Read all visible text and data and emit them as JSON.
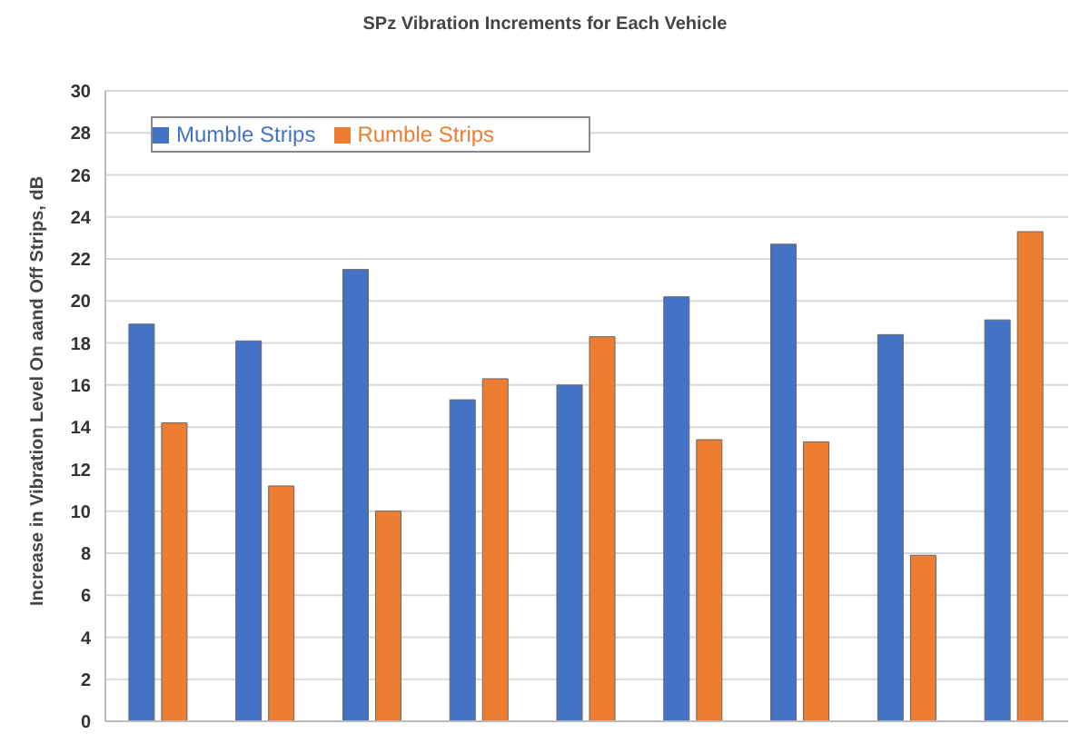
{
  "chart_data": {
    "type": "bar",
    "title": "SPz Vibration Increments for Each Vehicle",
    "ylabel": "Increase in Vibration Level On aand Off Strips, dB",
    "categories": [
      null,
      null,
      null,
      null,
      null,
      null,
      null,
      null,
      null
    ],
    "series": [
      {
        "name": "Mumble Strips",
        "color": "#4472c4",
        "values": [
          18.9,
          18.1,
          21.5,
          15.3,
          16.0,
          20.2,
          22.7,
          18.4,
          19.1
        ]
      },
      {
        "name": "Rumble Strips",
        "color": "#ed7d31",
        "values": [
          14.2,
          11.2,
          10.0,
          16.3,
          18.3,
          13.4,
          13.3,
          7.9,
          23.3
        ]
      }
    ],
    "ylim": [
      0,
      30
    ],
    "yticks": [
      0,
      2,
      4,
      6,
      8,
      10,
      12,
      14,
      16,
      18,
      20,
      22,
      24,
      26,
      28,
      30
    ],
    "grid": "y",
    "legend": "top left"
  }
}
